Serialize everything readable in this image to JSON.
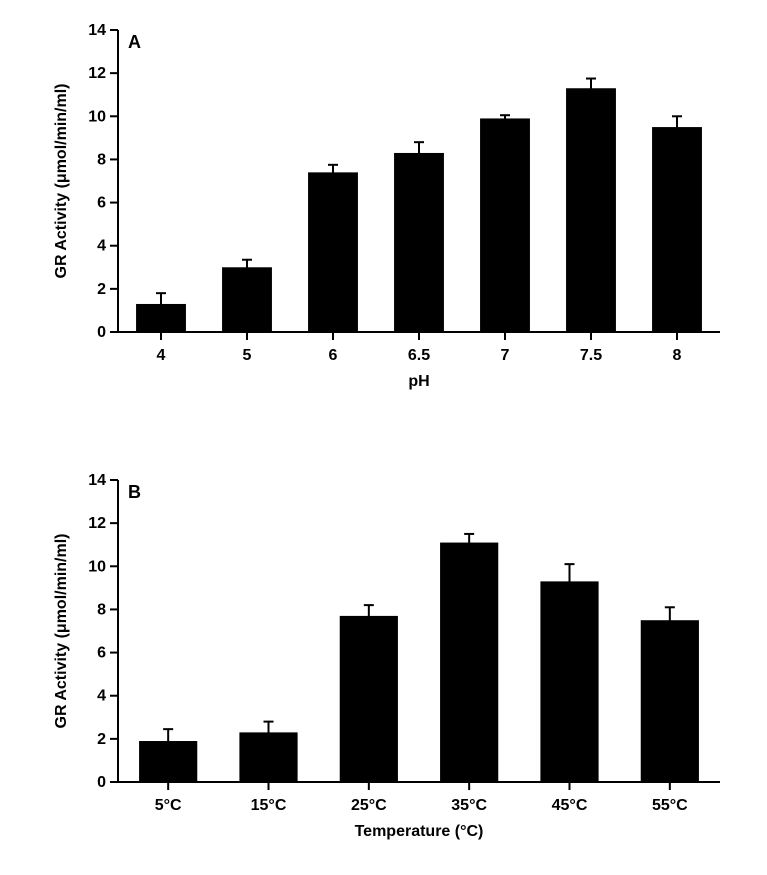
{
  "chartA": {
    "type": "bar",
    "panel_letter": "A",
    "categories": [
      "4",
      "5",
      "6",
      "6.5",
      "7",
      "7.5",
      "8"
    ],
    "values": [
      1.3,
      3.0,
      7.4,
      8.3,
      9.9,
      11.3,
      9.5
    ],
    "errors": [
      0.5,
      0.35,
      0.35,
      0.5,
      0.15,
      0.45,
      0.5
    ],
    "bar_color": "#000000",
    "ylim": [
      0,
      14
    ],
    "ytick_step": 2,
    "xlabel": "pH",
    "ylabel": "GR Activity (μmol/min/ml)",
    "background_color": "#ffffff",
    "axis_color": "#000000",
    "bar_width": 0.58,
    "tick_fontsize": 16,
    "label_fontsize": 16,
    "panel_letter_fontsize": 18,
    "error_cap_width": 10
  },
  "chartB": {
    "type": "bar",
    "panel_letter": "B",
    "categories": [
      "5°C",
      "15°C",
      "25°C",
      "35°C",
      "45°C",
      "55°C"
    ],
    "values": [
      1.9,
      2.3,
      7.7,
      11.1,
      9.3,
      7.5
    ],
    "errors": [
      0.55,
      0.5,
      0.5,
      0.4,
      0.8,
      0.6
    ],
    "bar_color": "#000000",
    "ylim": [
      0,
      14
    ],
    "ytick_step": 2,
    "xlabel": "Temperature (°C)",
    "ylabel": "GR Activity (μmol/min/ml)",
    "background_color": "#ffffff",
    "axis_color": "#000000",
    "bar_width": 0.58,
    "tick_fontsize": 16,
    "label_fontsize": 16,
    "panel_letter_fontsize": 18,
    "error_cap_width": 10
  }
}
